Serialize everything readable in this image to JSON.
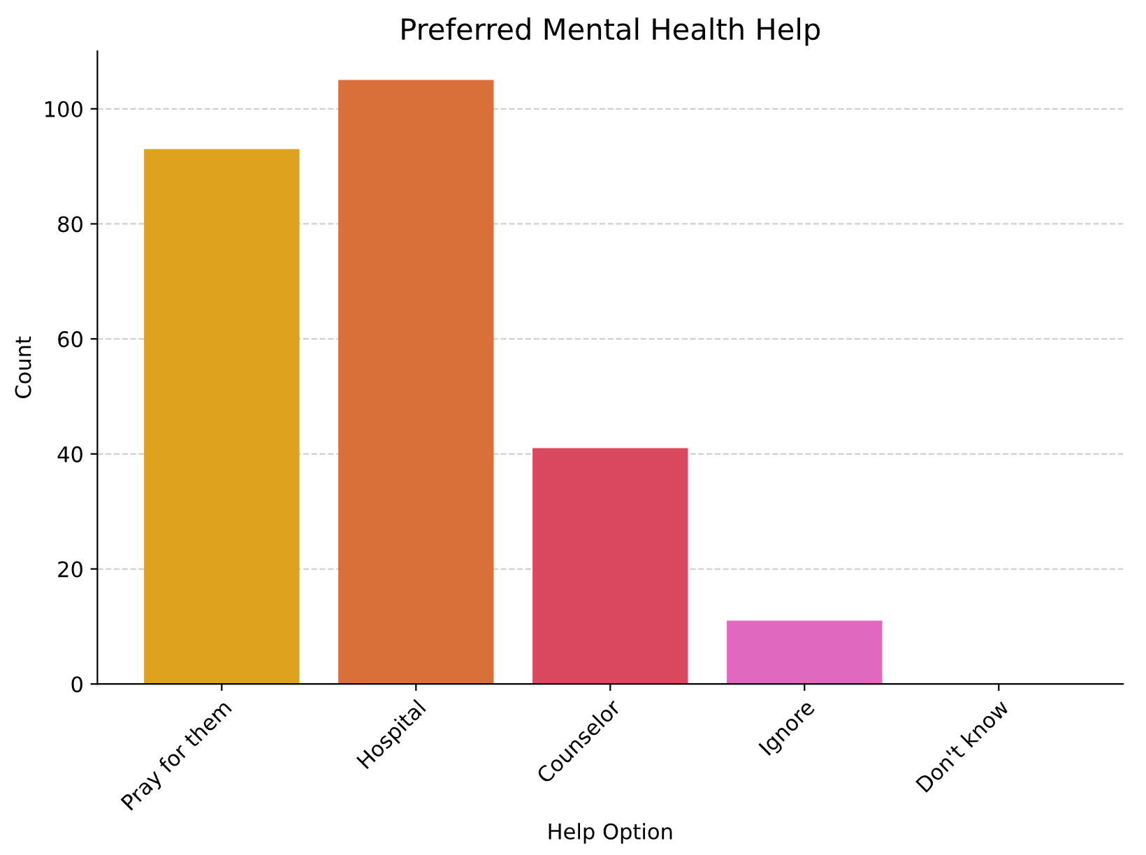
{
  "chart_data": {
    "type": "bar",
    "title": "Preferred Mental Health Help",
    "xlabel": "Help Option",
    "ylabel": "Count",
    "categories": [
      "Pray for them",
      "Hospital",
      "Counselor",
      "Ignore",
      "Don't know"
    ],
    "values": [
      93,
      105,
      41,
      11,
      0
    ],
    "colors": [
      "#dda21e",
      "#d9703a",
      "#d9485f",
      "#e168bf",
      "#c95fd0"
    ],
    "ylim": [
      0,
      110
    ],
    "yticks": [
      0,
      20,
      40,
      60,
      80,
      100
    ],
    "grid": "y"
  }
}
